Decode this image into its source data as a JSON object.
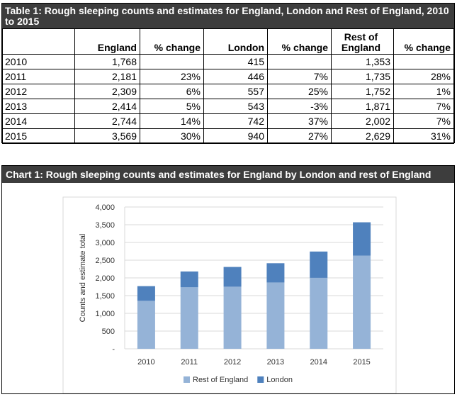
{
  "table": {
    "title": "Table 1: Rough sleeping counts and estimates for England, London and Rest of England, 2010 to 2015",
    "headers": [
      "",
      "England",
      "% change",
      "London",
      "% change",
      "Rest of England",
      "% change"
    ],
    "rows": [
      [
        "2010",
        "1,768",
        "",
        "415",
        "",
        "1,353",
        ""
      ],
      [
        "2011",
        "2,181",
        "23%",
        "446",
        "7%",
        "1,735",
        "28%"
      ],
      [
        "2012",
        "2,309",
        "6%",
        "557",
        "25%",
        "1,752",
        "1%"
      ],
      [
        "2013",
        "2,414",
        "5%",
        "543",
        "-3%",
        "1,871",
        "7%"
      ],
      [
        "2014",
        "2,744",
        "14%",
        "742",
        "37%",
        "2,002",
        "7%"
      ],
      [
        "2015",
        "3,569",
        "30%",
        "940",
        "27%",
        "2,629",
        "31%"
      ]
    ]
  },
  "chart_data": {
    "type": "bar",
    "stacked": true,
    "title": "Chart 1: Rough sleeping counts and estimates for England by London and rest of England",
    "categories": [
      "2010",
      "2011",
      "2012",
      "2013",
      "2014",
      "2015"
    ],
    "series": [
      {
        "name": "Rest of England",
        "color": "#95b3d7",
        "values": [
          1353,
          1735,
          1752,
          1871,
          2002,
          2629
        ]
      },
      {
        "name": "London",
        "color": "#4f81bd",
        "values": [
          415,
          446,
          557,
          543,
          742,
          940
        ]
      }
    ],
    "xlabel": "",
    "ylabel": "Counts and estimate total",
    "ylim": [
      0,
      4000
    ],
    "yticks": [
      0,
      500,
      1000,
      1500,
      2000,
      2500,
      3000,
      3500,
      4000
    ],
    "ytick_labels": [
      "-",
      "500",
      "1,000",
      "1,500",
      "2,000",
      "2,500",
      "3,000",
      "3,500",
      "4,000"
    ],
    "grid": true,
    "legend": "bottom"
  }
}
